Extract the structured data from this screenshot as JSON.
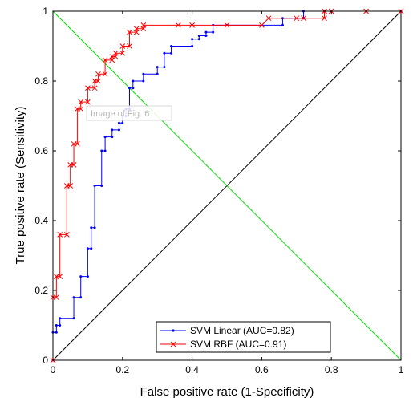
{
  "chart_data": {
    "type": "line",
    "title": "",
    "xlabel": "False positive rate (1-Specificity)",
    "ylabel": "True positive rate (Sensitivity)",
    "xlim": [
      0,
      1
    ],
    "ylim": [
      0,
      1
    ],
    "xticks": [
      "0",
      "0.2",
      "0.4",
      "0.6",
      "0.8",
      "1"
    ],
    "yticks": [
      "0",
      "0.2",
      "0.4",
      "0.6",
      "0.8",
      "1"
    ],
    "grid": false,
    "legend_position": "bottom-center",
    "watermark": "Image of Fig. 6",
    "series": [
      {
        "name": "SVM Linear (AUC=0.82)",
        "color": "#0000ff",
        "marker": "dot",
        "x": [
          0,
          0,
          0.01,
          0.01,
          0.02,
          0.02,
          0.06,
          0.06,
          0.08,
          0.08,
          0.1,
          0.1,
          0.11,
          0.11,
          0.12,
          0.12,
          0.14,
          0.14,
          0.15,
          0.15,
          0.17,
          0.17,
          0.19,
          0.19,
          0.2,
          0.2,
          0.21,
          0.21,
          0.22,
          0.22,
          0.23,
          0.23,
          0.26,
          0.26,
          0.3,
          0.3,
          0.32,
          0.32,
          0.34,
          0.34,
          0.4,
          0.4,
          0.42,
          0.42,
          0.44,
          0.44,
          0.46,
          0.46,
          0.5,
          0.5,
          0.66,
          0.66,
          0.72,
          0.72,
          0.78,
          0.78,
          0.8,
          0.8,
          1.0
        ],
        "y": [
          0,
          0.08,
          0.08,
          0.1,
          0.1,
          0.12,
          0.12,
          0.18,
          0.18,
          0.24,
          0.24,
          0.32,
          0.32,
          0.38,
          0.38,
          0.5,
          0.5,
          0.6,
          0.6,
          0.64,
          0.64,
          0.66,
          0.66,
          0.68,
          0.68,
          0.7,
          0.7,
          0.72,
          0.72,
          0.78,
          0.78,
          0.8,
          0.8,
          0.82,
          0.82,
          0.84,
          0.84,
          0.88,
          0.88,
          0.9,
          0.9,
          0.92,
          0.92,
          0.93,
          0.93,
          0.94,
          0.94,
          0.96,
          0.96,
          0.96,
          0.96,
          0.98,
          0.98,
          1.0,
          1.0,
          1.0,
          1.0,
          1.0,
          1.0
        ]
      },
      {
        "name": "SVM RBF (AUC=0.91)",
        "color": "#ff0000",
        "marker": "x",
        "x": [
          0,
          0,
          0.01,
          0.01,
          0.02,
          0.02,
          0.04,
          0.04,
          0.05,
          0.05,
          0.06,
          0.06,
          0.07,
          0.07,
          0.08,
          0.08,
          0.1,
          0.1,
          0.12,
          0.12,
          0.13,
          0.13,
          0.15,
          0.15,
          0.17,
          0.17,
          0.18,
          0.18,
          0.2,
          0.2,
          0.22,
          0.22,
          0.24,
          0.24,
          0.26,
          0.26,
          0.36,
          0.4,
          0.5,
          0.6,
          0.62,
          0.7,
          0.72,
          0.78,
          0.78,
          0.8,
          0.9,
          1.0
        ],
        "y": [
          0,
          0.18,
          0.18,
          0.24,
          0.24,
          0.36,
          0.36,
          0.5,
          0.5,
          0.56,
          0.56,
          0.62,
          0.62,
          0.72,
          0.72,
          0.74,
          0.74,
          0.78,
          0.78,
          0.8,
          0.8,
          0.82,
          0.82,
          0.86,
          0.86,
          0.87,
          0.87,
          0.88,
          0.88,
          0.9,
          0.9,
          0.94,
          0.94,
          0.95,
          0.95,
          0.96,
          0.96,
          0.96,
          0.96,
          0.96,
          0.98,
          0.98,
          0.98,
          0.98,
          1.0,
          1.0,
          1.0,
          1.0
        ]
      },
      {
        "name": "",
        "color": "#000000",
        "marker": "none",
        "x": [
          0,
          1
        ],
        "y": [
          0,
          1
        ]
      },
      {
        "name": "",
        "color": "#00dd00",
        "marker": "none",
        "x": [
          0,
          1
        ],
        "y": [
          1,
          0
        ]
      }
    ]
  }
}
